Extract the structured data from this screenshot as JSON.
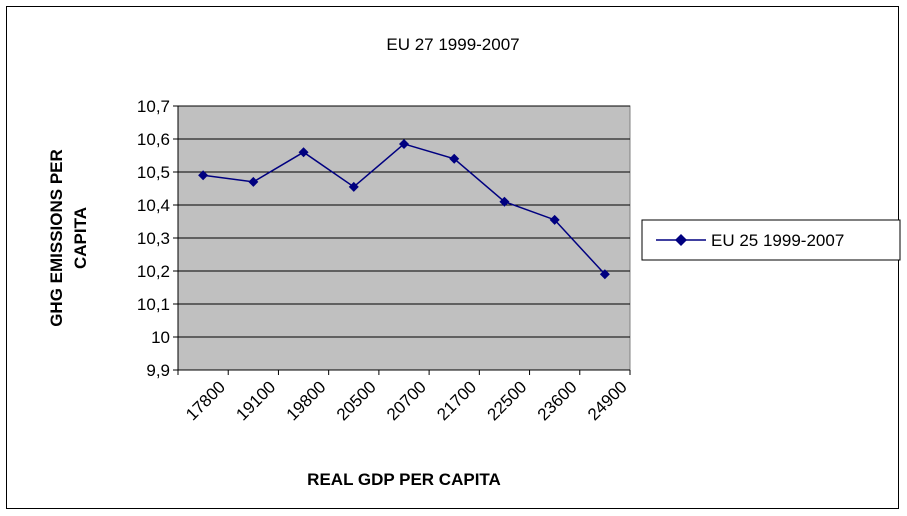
{
  "chart_data": {
    "type": "line",
    "title": "EU 27 1999-2007",
    "xlabel": "REAL GDP PER CAPITA",
    "ylabel": "GHG EMISSIONS PER CAPITA",
    "categories": [
      "17800",
      "19100",
      "19800",
      "20500",
      "20700",
      "21700",
      "22500",
      "23600",
      "24900"
    ],
    "y_ticks": [
      "9,9",
      "10",
      "10,1",
      "10,2",
      "10,3",
      "10,4",
      "10,5",
      "10,6",
      "10,7"
    ],
    "ylim": [
      9.9,
      10.7
    ],
    "grid": true,
    "legend_position": "right",
    "series": [
      {
        "name": "EU 25 1999-2007",
        "values": [
          10.49,
          10.47,
          10.56,
          10.455,
          10.585,
          10.54,
          10.41,
          10.355,
          10.19
        ],
        "color": "#000080"
      }
    ],
    "plot_background": "#c0c0c0"
  }
}
